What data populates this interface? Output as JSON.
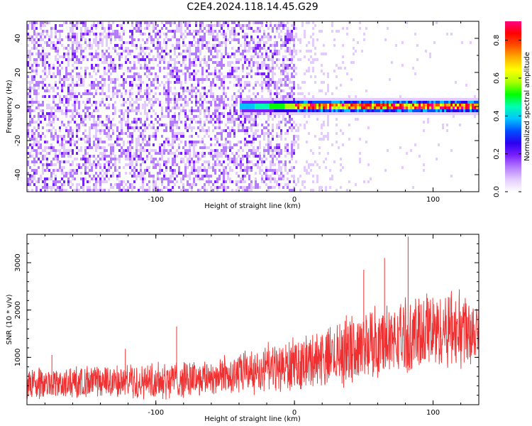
{
  "title": "C2E4.2024.118.14.45.G29",
  "chart_data": [
    {
      "type": "heatmap",
      "xlabel": "Height of straight line (km)",
      "ylabel": "Frequency (Hz)",
      "xlim": [
        -193,
        133
      ],
      "ylim": [
        -50,
        50
      ],
      "x_ticks": [
        -100,
        0,
        100
      ],
      "x_tick_labels": [
        "-100",
        "0",
        "100"
      ],
      "y_ticks": [
        -40,
        -20,
        0,
        20,
        40
      ],
      "y_tick_labels": [
        "-40",
        "-20",
        "0",
        "20",
        "40"
      ],
      "grid": false,
      "colorbar": {
        "label": "Normalized spectral amplitude",
        "range": [
          0,
          0.9
        ],
        "ticks": [
          0.0,
          0.2,
          0.4,
          0.6,
          0.8
        ],
        "tick_labels": [
          "0.0",
          "0.2",
          "0.4",
          "0.6",
          "0.8"
        ],
        "colormap": [
          "#ffffff",
          "#e3cbff",
          "#b57cff",
          "#7a1fff",
          "#2a00f0",
          "#0050ff",
          "#00c4ff",
          "#00ffb0",
          "#00ff00",
          "#aaff00",
          "#ffff00",
          "#ffb000",
          "#ff5000",
          "#ff0000",
          "#ff0080"
        ]
      },
      "description_values": {
        "noise_region_x": [
          -193,
          0
        ],
        "noise_amplitude": 0.15,
        "signal_band_frequency_hz": 0,
        "signal_start_x": -40,
        "signal_peak_amplitude": 0.8
      }
    },
    {
      "type": "line",
      "xlabel": "Height of straight line (km)",
      "ylabel": "SNR (10 * v/v)",
      "xlim": [
        -193,
        133
      ],
      "ylim": [
        0,
        3600
      ],
      "x_ticks": [
        -100,
        0,
        100
      ],
      "x_tick_labels": [
        "-100",
        "0",
        "100"
      ],
      "y_ticks": [
        1000,
        2000,
        3000
      ],
      "y_tick_labels": [
        "1000",
        "2000",
        "3000"
      ],
      "grid": false,
      "series": [
        {
          "color": "#f03030",
          "envelope_x": [
            -193,
            -150,
            -100,
            -50,
            0,
            50,
            100,
            133
          ],
          "envelope_mean": [
            430,
            450,
            520,
            620,
            820,
            1250,
            1550,
            1700
          ],
          "envelope_spread": [
            280,
            300,
            330,
            380,
            480,
            650,
            750,
            750
          ],
          "spikes": [
            [
              -175,
              1050
            ],
            [
              -122,
              1180
            ],
            [
              -85,
              1650
            ],
            [
              50,
              2850
            ],
            [
              65,
              3100
            ],
            [
              82,
              3550
            ]
          ]
        }
      ]
    }
  ]
}
